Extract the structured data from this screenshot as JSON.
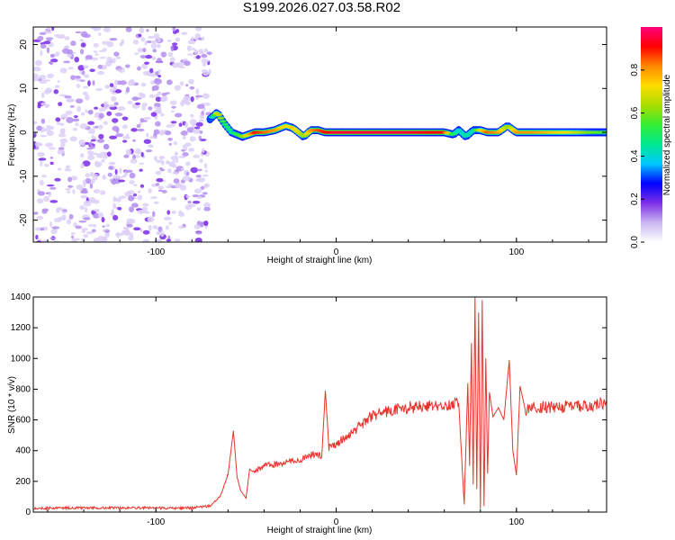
{
  "title": "S199.2026.027.03.58.R02",
  "chart_data": [
    {
      "type": "heatmap",
      "xlabel": "Height of straight line (km)",
      "ylabel": "Frequency (Hz)",
      "xlim": [
        -168,
        150
      ],
      "ylim": [
        -25,
        24
      ],
      "xticks": [
        -100,
        0,
        100
      ],
      "yticks": [
        -20,
        -10,
        0,
        10,
        20
      ],
      "colorbar": {
        "label": "Normalized spectral amplitude",
        "range": [
          0,
          1
        ],
        "ticks": [
          0.0,
          0.2,
          0.4,
          0.6,
          0.8
        ],
        "colors": [
          "#ffffff",
          "#c9b6f2",
          "#7d2fe6",
          "#0000ff",
          "#00c8ff",
          "#00e890",
          "#33ee33",
          "#aadd00",
          "#ffdd00",
          "#ff8800",
          "#ff0000",
          "#ff0080"
        ]
      },
      "noise_region": {
        "x_range": [
          -168,
          -70
        ],
        "y_range": [
          -25,
          24
        ]
      },
      "ridge": {
        "x": [
          -70,
          -66,
          -62,
          -58,
          -52,
          -45,
          -40,
          -34,
          -28,
          -24,
          -18,
          -14,
          -10,
          -6,
          0,
          20,
          40,
          60,
          65,
          68,
          72,
          76,
          80,
          84,
          90,
          95,
          100,
          110,
          120,
          130,
          140,
          150
        ],
        "y": [
          3,
          4.5,
          2,
          0,
          -1,
          0,
          0,
          0.5,
          1.5,
          1,
          -1,
          0.5,
          0.5,
          0,
          0,
          0,
          0,
          0,
          -0.5,
          0.5,
          -1,
          0.5,
          0.5,
          0,
          0,
          1.5,
          0,
          0,
          0,
          0,
          0,
          0
        ],
        "amplitude": [
          0.3,
          0.7,
          0.5,
          0.45,
          0.6,
          0.9,
          0.85,
          0.8,
          0.7,
          0.75,
          0.6,
          0.8,
          0.85,
          0.9,
          0.95,
          0.95,
          0.95,
          0.9,
          0.5,
          0.4,
          0.45,
          0.4,
          0.7,
          0.85,
          0.8,
          0.6,
          0.8,
          0.8,
          0.75,
          0.7,
          0.6,
          0.55
        ]
      }
    },
    {
      "type": "line",
      "xlabel": "Height of straight line (km)",
      "ylabel": "SNR (10 * v/v)",
      "xlim": [
        -168,
        150
      ],
      "ylim": [
        0,
        1400
      ],
      "xticks": [
        -100,
        0,
        100
      ],
      "yticks": [
        0,
        200,
        400,
        600,
        800,
        1000,
        1200,
        1400
      ],
      "series": [
        {
          "color": "#e8332c",
          "x": [
            -168,
            -140,
            -110,
            -90,
            -80,
            -70,
            -64,
            -60,
            -57,
            -55,
            -53,
            -50,
            -48,
            -46,
            -40,
            -30,
            -20,
            -12,
            -8,
            -6,
            -4,
            0,
            10,
            20,
            30,
            40,
            50,
            58,
            63,
            68,
            71,
            73,
            74,
            75,
            76,
            77,
            78,
            79,
            80,
            81,
            82,
            83,
            84,
            85,
            87,
            90,
            93,
            96,
            98,
            100,
            102,
            105,
            110,
            120,
            130,
            140,
            150
          ],
          "y": [
            25,
            28,
            27,
            25,
            28,
            40,
            110,
            240,
            530,
            230,
            140,
            90,
            280,
            260,
            300,
            320,
            340,
            380,
            360,
            790,
            420,
            440,
            530,
            630,
            660,
            680,
            690,
            690,
            700,
            710,
            50,
            840,
            300,
            1100,
            180,
            1400,
            150,
            1300,
            20,
            1380,
            40,
            1000,
            250,
            780,
            620,
            680,
            600,
            990,
            400,
            240,
            820,
            660,
            690,
            680,
            690,
            690,
            710
          ]
        }
      ]
    }
  ]
}
